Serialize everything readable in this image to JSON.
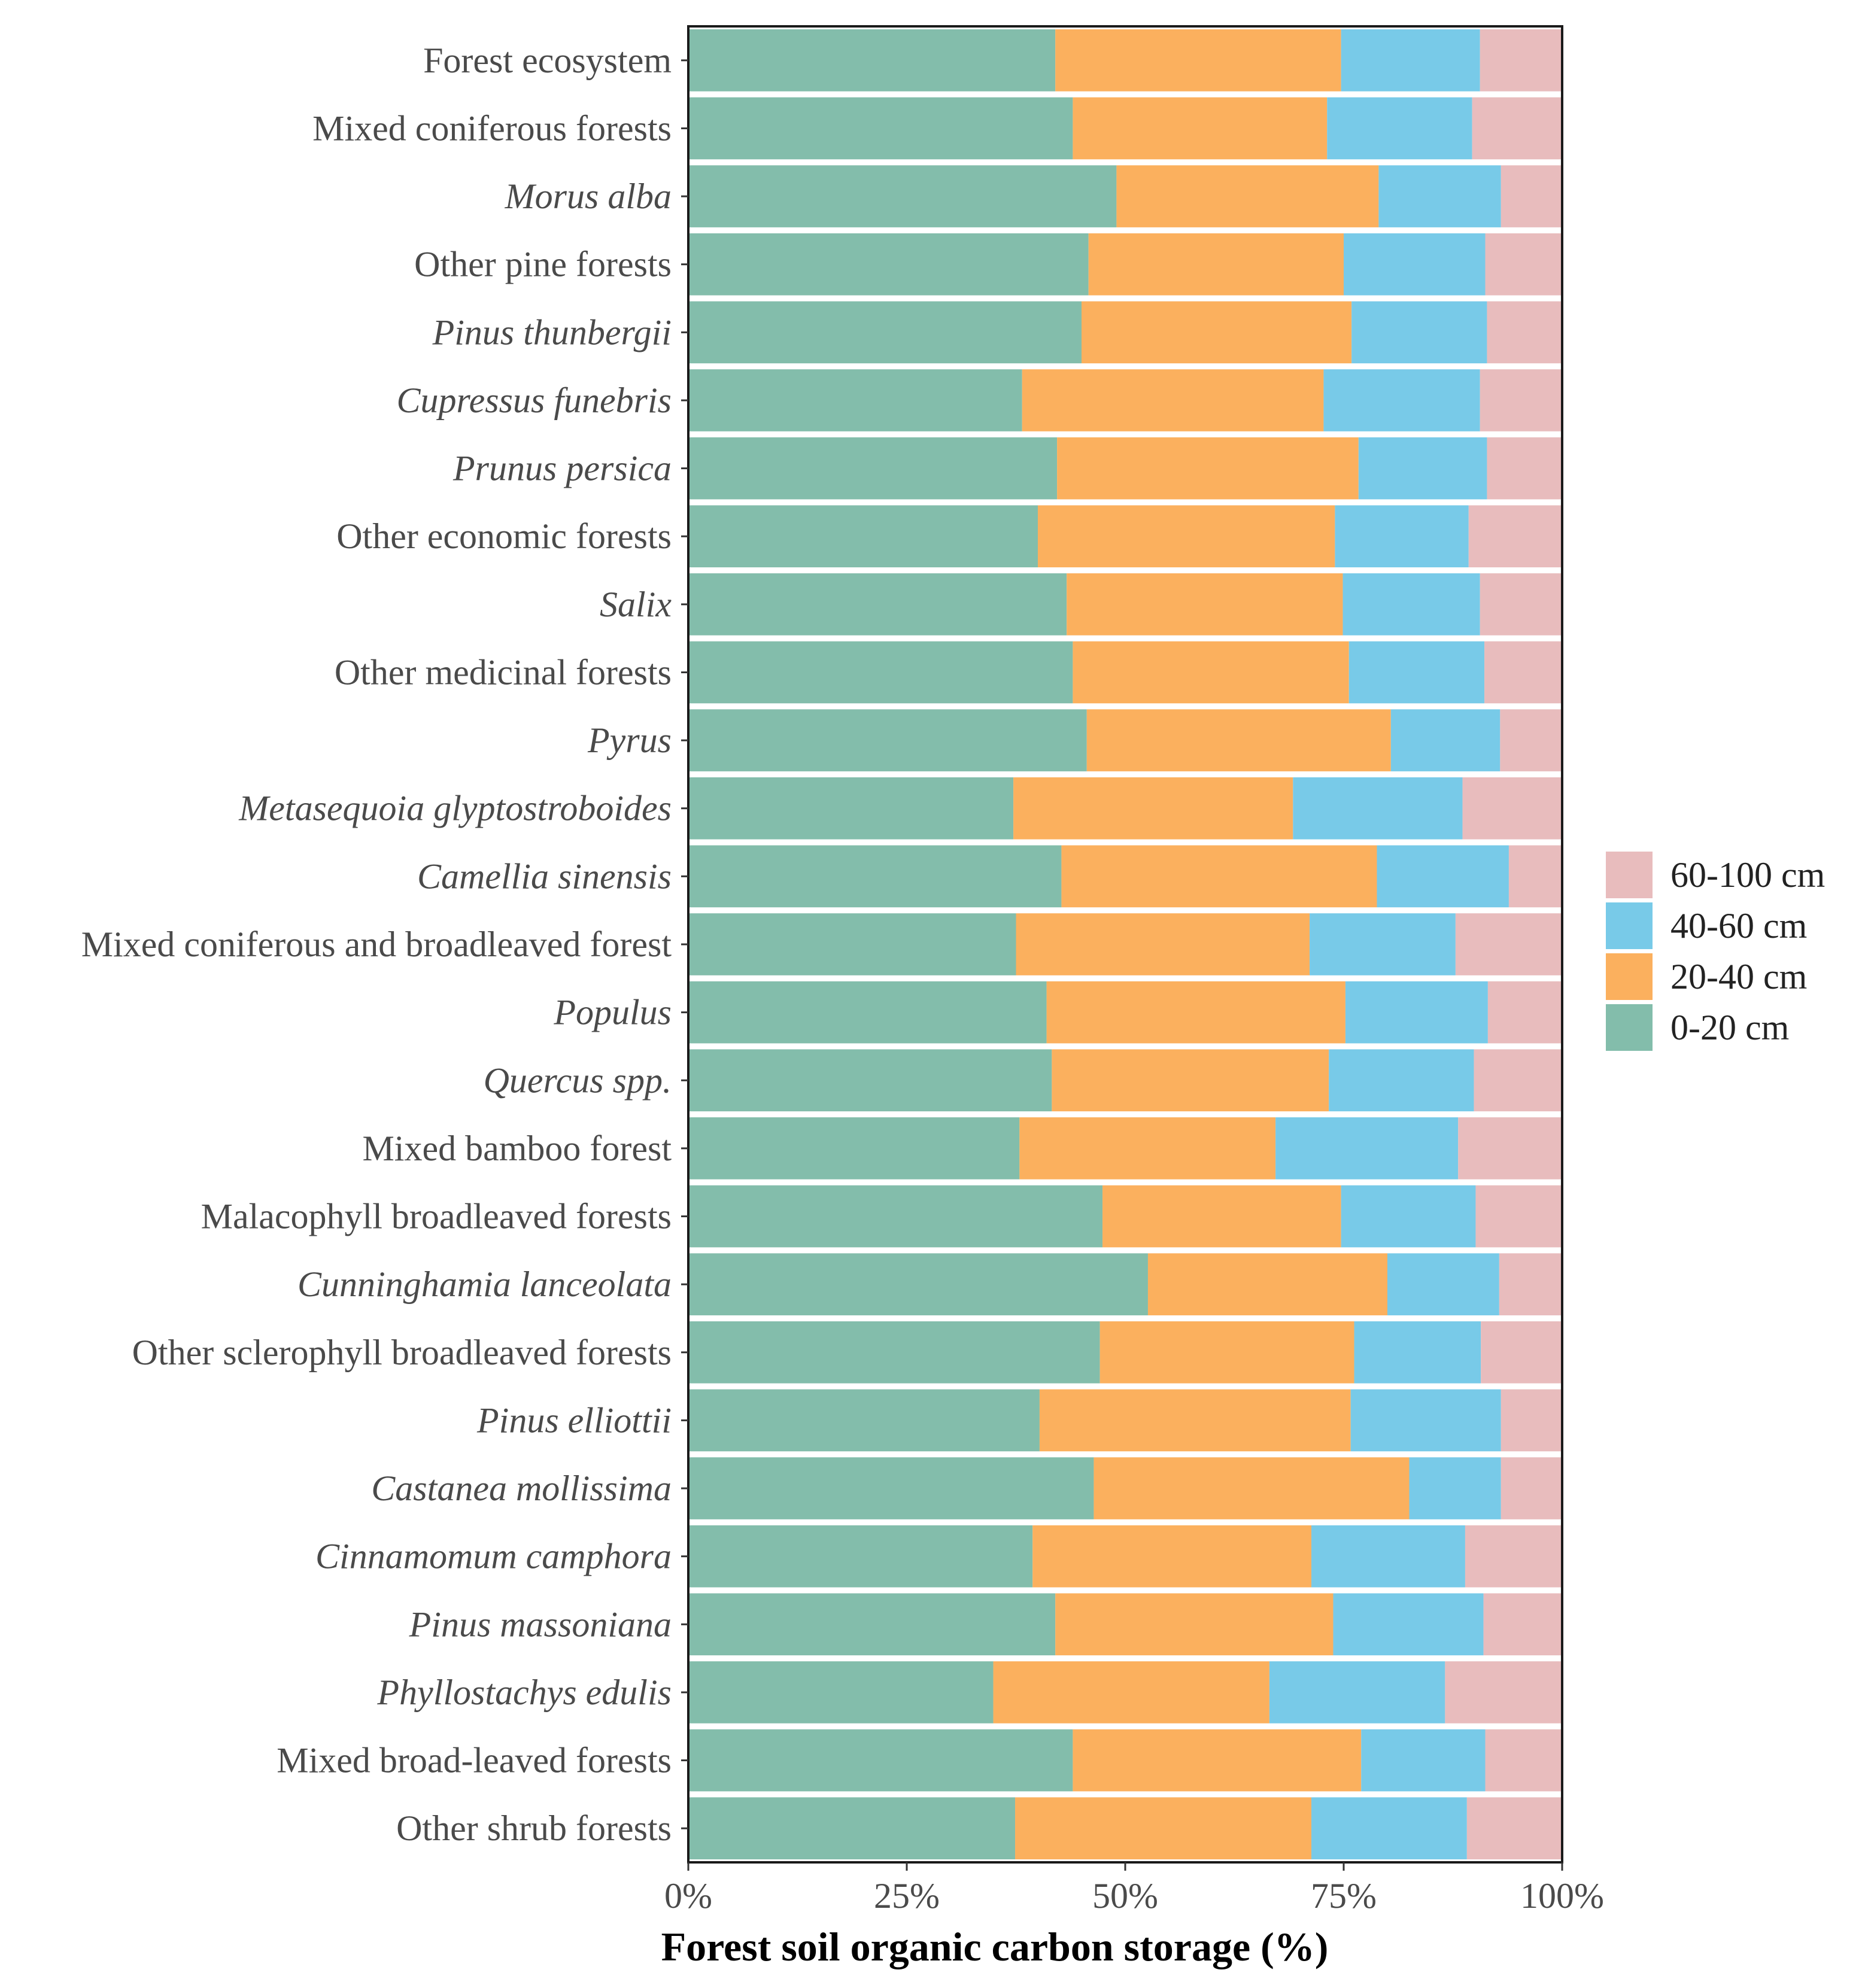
{
  "chart_data": {
    "type": "bar",
    "orientation": "horizontal",
    "stacked": true,
    "title": "",
    "xlabel": "Forest soil organic carbon storage (%)",
    "ylabel": "",
    "xlim": [
      0,
      100
    ],
    "x_ticks": [
      "0%",
      "25%",
      "50%",
      "75%",
      "100%"
    ],
    "grid": false,
    "legend_position": "right",
    "categories": [
      "Forest ecosystem",
      "Mixed coniferous forests",
      "Morus alba",
      "Other pine forests",
      "Pinus thunbergii",
      "Cupressus funebris",
      "Prunus persica",
      "Other economic forests",
      "Salix",
      "Other medicinal forests",
      "Pyrus",
      "Metasequoia glyptostroboides",
      "Camellia sinensis",
      "Mixed coniferous and broadleaved forest",
      "Populus",
      "Quercus spp.",
      "Mixed bamboo forest",
      "Malacophyll broadleaved forests",
      "Cunninghamia lanceolata",
      "Other sclerophyll broadleaved forests",
      "Pinus elliottii",
      "Castanea mollissima",
      "Cinnamomum camphora",
      "Pinus massoniana",
      "Phyllostachys edulis",
      "Mixed broad-leaved forests",
      "Other shrub forests"
    ],
    "italic_categories": [
      "Morus alba",
      "Pinus thunbergii",
      "Cupressus funebris",
      "Prunus persica",
      "Salix",
      "Pyrus",
      "Metasequoia glyptostroboides",
      "Camellia sinensis",
      "Populus",
      "Quercus spp.",
      "Cunninghamia lanceolata",
      "Pinus elliottii",
      "Castanea mollissima",
      "Cinnamomum camphora",
      "Pinus massoniana",
      "Phyllostachys edulis"
    ],
    "series": [
      {
        "name": "0-20 cm",
        "color": "#83bdab",
        "values": [
          42.0,
          44.0,
          49.0,
          45.8,
          45.0,
          38.2,
          42.2,
          40.0,
          43.3,
          44.0,
          45.6,
          37.2,
          42.7,
          37.5,
          41.0,
          41.6,
          37.9,
          47.4,
          52.6,
          47.1,
          40.2,
          46.4,
          39.4,
          42.0,
          34.9,
          44.0,
          37.4
        ]
      },
      {
        "name": "20-40 cm",
        "color": "#fbb05e",
        "values": [
          32.7,
          29.1,
          30.0,
          29.2,
          30.9,
          34.5,
          34.5,
          34.0,
          31.6,
          31.6,
          34.8,
          32.0,
          36.1,
          33.6,
          34.2,
          31.7,
          29.3,
          27.3,
          27.4,
          29.1,
          35.6,
          36.1,
          31.9,
          31.8,
          31.6,
          33.0,
          33.9
        ]
      },
      {
        "name": "40-60 cm",
        "color": "#78cae8",
        "values": [
          15.9,
          16.6,
          14.0,
          16.2,
          15.5,
          17.9,
          14.7,
          15.3,
          15.7,
          15.5,
          12.5,
          19.4,
          15.1,
          16.7,
          16.3,
          16.6,
          20.9,
          15.4,
          12.8,
          14.5,
          17.2,
          10.5,
          17.6,
          17.2,
          20.1,
          14.2,
          17.8
        ]
      },
      {
        "name": "60-100 cm",
        "color": "#e8bcbd",
        "values": [
          9.4,
          10.3,
          7.0,
          8.8,
          8.6,
          9.4,
          8.6,
          10.7,
          9.4,
          8.9,
          7.1,
          11.4,
          6.1,
          12.2,
          8.5,
          10.1,
          11.9,
          9.9,
          7.2,
          9.3,
          7.0,
          7.0,
          11.1,
          9.0,
          13.4,
          8.8,
          10.9
        ]
      }
    ],
    "legend": [
      "60-100 cm",
      "40-60 cm",
      "20-40 cm",
      "0-20 cm"
    ]
  }
}
